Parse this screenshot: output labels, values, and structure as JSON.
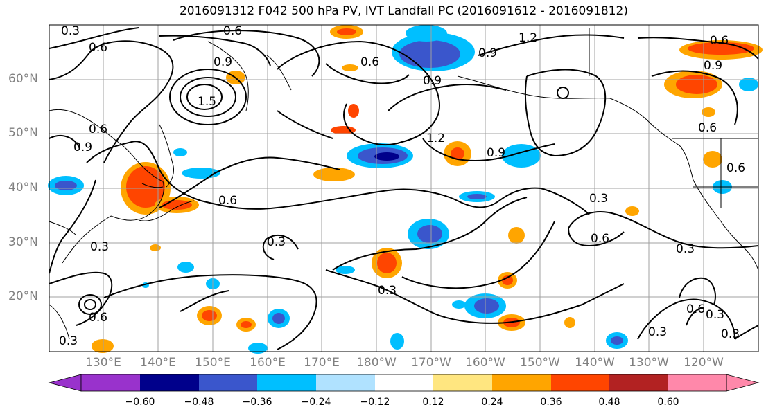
{
  "title": "2016091312 F042 500 hPa PV, IVT Landfall PC (2016091612 - 2016091812)",
  "lat_labels": [
    "60°N",
    "50°N",
    "40°N",
    "30°N",
    "20°N"
  ],
  "lon_labels": [
    "130°E",
    "140°E",
    "150°E",
    "160°E",
    "170°E",
    "180°W",
    "170°W",
    "160°W",
    "150°W",
    "140°W",
    "130°W",
    "120°W"
  ],
  "colorbar": {
    "ticks": [
      "−0.60",
      "−0.48",
      "−0.36",
      "−0.24",
      "−0.12",
      "0.12",
      "0.24",
      "0.36",
      "0.48",
      "0.60"
    ],
    "colors": [
      "#9932CC",
      "#00008B",
      "#3A56CC",
      "#00BFFF",
      "#B0E2FF",
      "#FFFFFF",
      "#FFE680",
      "#FFA500",
      "#FF4500",
      "#B22222",
      "#FF88AA"
    ]
  },
  "contour_labels": [
    "0.3",
    "0.6",
    "0.6",
    "0.9",
    "1.5",
    "0.6",
    "0.9",
    "0.6",
    "0.9",
    "1.2",
    "0.9",
    "1.2",
    "0.6",
    "0.9",
    "0.9",
    "0.6",
    "0.6",
    "0.6",
    "0.3",
    "0.3",
    "0.3",
    "0.6",
    "0.3",
    "0.3",
    "0.3",
    "0.6",
    "0.3",
    "0.3",
    "0.3",
    "0.6"
  ]
}
